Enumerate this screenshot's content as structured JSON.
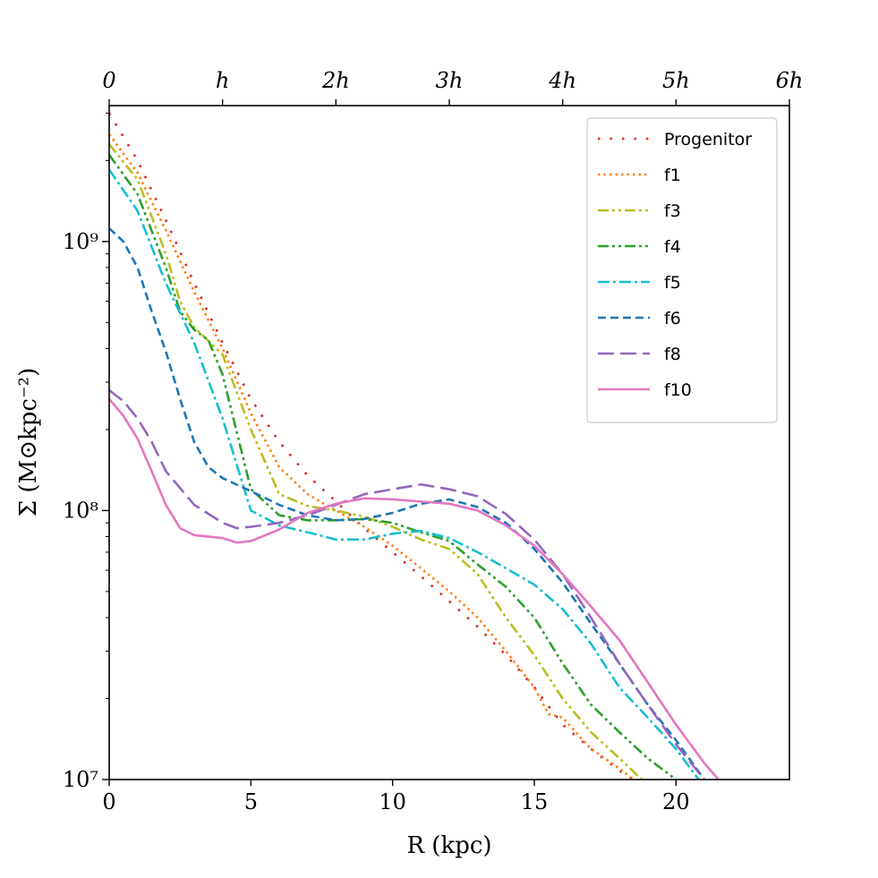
{
  "chart_data": {
    "type": "line",
    "xlabel": "R (kpc)",
    "ylabel": "Σ (M⊙kpc⁻²)",
    "xlim": [
      0,
      24
    ],
    "ylim": [
      10000000,
      3200000000
    ],
    "yscale": "log",
    "grid": false,
    "legend_position": "top-right",
    "x_ticks": [
      0,
      5,
      10,
      15,
      20
    ],
    "x_tick_labels": [
      "0",
      "5",
      "10",
      "15",
      "20"
    ],
    "y_ticks": [
      10000000,
      100000000,
      1000000000
    ],
    "y_tick_labels": [
      "10⁷",
      "10⁸",
      "10⁹"
    ],
    "top_axis": {
      "ticks": [
        0,
        4,
        8,
        12,
        16,
        20,
        24
      ],
      "labels": [
        "0",
        "h",
        "2h",
        "3h",
        "4h",
        "5h",
        "6h"
      ]
    },
    "series": [
      {
        "name": "Progenitor",
        "color": "#d62728",
        "dash": "dotted-sparse",
        "x": [
          0,
          1,
          2,
          3,
          4,
          5,
          6,
          7,
          8,
          9,
          10,
          11,
          12,
          13,
          14,
          15,
          16,
          17,
          18,
          18.5
        ],
        "y": [
          3000000000,
          2000000000,
          1200000000,
          700000000,
          420000000,
          260000000,
          180000000,
          135000000,
          108000000,
          86000000,
          70000000,
          57000000,
          46000000,
          37000000,
          29000000,
          22000000,
          16000000,
          13000000,
          10800000,
          10000000
        ]
      },
      {
        "name": "f1",
        "color": "#ff7f0e",
        "dash": "dotted",
        "x": [
          0,
          1,
          2,
          3,
          4,
          5,
          6,
          7,
          8,
          9,
          10,
          11,
          12,
          13,
          14,
          15,
          15.5,
          16,
          17,
          18,
          18.5
        ],
        "y": [
          2500000000,
          1800000000,
          1100000000,
          650000000,
          400000000,
          230000000,
          145000000,
          115000000,
          100000000,
          87000000,
          74000000,
          61000000,
          50000000,
          40000000,
          30000000,
          22000000,
          17500000,
          17000000,
          13000000,
          11000000,
          10000000
        ]
      },
      {
        "name": "f3",
        "color": "#bcbd22",
        "dash": "dash-dot-dot",
        "x": [
          0,
          1,
          2,
          2.5,
          3,
          4,
          5,
          6,
          7,
          8,
          9,
          10,
          11,
          12,
          13,
          14,
          15,
          16,
          17,
          18,
          18.8
        ],
        "y": [
          2300000000,
          1700000000,
          900000000,
          600000000,
          480000000,
          380000000,
          200000000,
          115000000,
          104000000,
          100000000,
          95000000,
          87000000,
          78000000,
          72000000,
          58000000,
          40000000,
          29000000,
          20000000,
          15000000,
          12000000,
          10000000
        ]
      },
      {
        "name": "f4",
        "color": "#2ca02c",
        "dash": "dash-dot-dot",
        "x": [
          0,
          1,
          2,
          2.5,
          3,
          3.5,
          4,
          5,
          6,
          7,
          8,
          9,
          10,
          11,
          12,
          13,
          14,
          15,
          16,
          17,
          18,
          19,
          20
        ],
        "y": [
          2100000000,
          1500000000,
          800000000,
          550000000,
          470000000,
          430000000,
          320000000,
          120000000,
          96000000,
          92000000,
          92000000,
          93000000,
          90000000,
          83000000,
          77000000,
          63000000,
          52000000,
          40000000,
          27000000,
          19000000,
          15000000,
          12000000,
          10000000
        ]
      },
      {
        "name": "f5",
        "color": "#17becf",
        "dash": "dash-dot",
        "x": [
          0,
          1,
          2,
          3,
          4,
          5,
          6,
          7,
          8,
          9,
          10,
          11,
          12,
          13,
          14,
          15,
          16,
          17,
          18,
          19,
          20,
          20.8
        ],
        "y": [
          1850000000,
          1300000000,
          700000000,
          420000000,
          220000000,
          100000000,
          88000000,
          83000000,
          78000000,
          78000000,
          82000000,
          84000000,
          79000000,
          70000000,
          61000000,
          53000000,
          43000000,
          32000000,
          22000000,
          17000000,
          13000000,
          10000000
        ]
      },
      {
        "name": "f6",
        "color": "#1f77b4",
        "dash": "dashed",
        "x": [
          0,
          0.5,
          1,
          1.5,
          2,
          2.5,
          3,
          3.5,
          4,
          5,
          6,
          7,
          8,
          9,
          10,
          11,
          12,
          13,
          14,
          15,
          16,
          17,
          18,
          19,
          20,
          21
        ],
        "y": [
          1120000000,
          1000000000,
          800000000,
          550000000,
          390000000,
          260000000,
          180000000,
          145000000,
          132000000,
          118000000,
          105000000,
          96000000,
          92000000,
          93000000,
          98000000,
          106000000,
          110000000,
          103000000,
          90000000,
          72000000,
          54000000,
          38000000,
          27000000,
          19000000,
          14000000,
          10000000
        ]
      },
      {
        "name": "f8",
        "color": "#9467bd",
        "dash": "long-dash",
        "x": [
          0,
          0.5,
          1,
          1.5,
          2,
          3,
          4,
          4.5,
          5,
          6,
          7,
          8,
          9,
          10,
          11,
          12,
          13,
          14,
          15,
          16,
          17,
          18,
          19,
          20,
          21
        ],
        "y": [
          280000000,
          255000000,
          220000000,
          180000000,
          140000000,
          105000000,
          90000000,
          86000000,
          87000000,
          90000000,
          96000000,
          105000000,
          115000000,
          120000000,
          125000000,
          120000000,
          113000000,
          97000000,
          78000000,
          58000000,
          40000000,
          27000000,
          19000000,
          13500000,
          10000000
        ]
      },
      {
        "name": "f10",
        "color": "#e377c2",
        "dash": "solid",
        "x": [
          0,
          0.5,
          1,
          1.5,
          2,
          2.5,
          3,
          3.5,
          4,
          4.5,
          5,
          6,
          7,
          8,
          9,
          10,
          11,
          12,
          13,
          14,
          15,
          16,
          17,
          18,
          19,
          20,
          21,
          21.5
        ],
        "y": [
          260000000,
          225000000,
          185000000,
          140000000,
          105000000,
          86000000,
          81000000,
          80000000,
          79000000,
          76000000,
          77000000,
          85000000,
          98000000,
          106000000,
          111000000,
          110000000,
          108000000,
          106000000,
          100000000,
          88000000,
          74000000,
          58000000,
          44000000,
          33000000,
          23000000,
          16000000,
          11500000,
          10000000
        ]
      }
    ]
  }
}
